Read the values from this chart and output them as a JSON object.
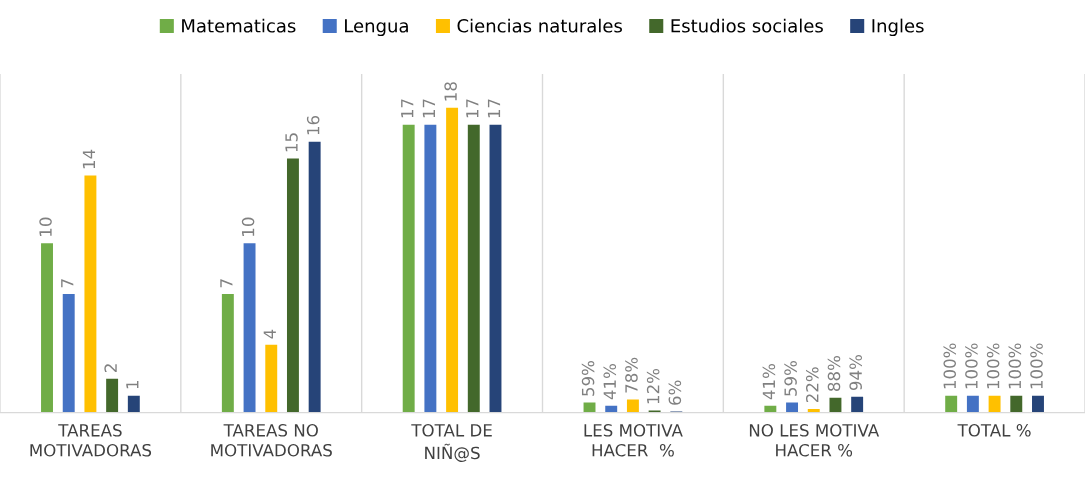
{
  "chart_data": {
    "type": "bar",
    "categories": [
      "TAREAS\nMOTIVADORAS",
      "TAREAS NO\nMOTIVADORAS",
      "TOTAL DE\nNIÑ@S",
      "LES MOTIVA\nHACER  %",
      "NO LES MOTIVA\nHACER %",
      "TOTAL %"
    ],
    "ylim": [
      0,
      20
    ],
    "grid": "x",
    "legend": "top",
    "tick_labels": "x",
    "series": [
      {
        "name": "Matematicas",
        "color": "#70ad47",
        "values": [
          10,
          7,
          17,
          0.59,
          0.41,
          1
        ],
        "value_labels": [
          "10",
          "7",
          "17",
          "59%",
          "41%",
          "100%"
        ]
      },
      {
        "name": "Lengua",
        "color": "#4472c4",
        "values": [
          7,
          10,
          17,
          0.41,
          0.59,
          1
        ],
        "value_labels": [
          "7",
          "10",
          "17",
          "41%",
          "59%",
          "100%"
        ]
      },
      {
        "name": "Ciencias naturales",
        "color": "#ffc000",
        "values": [
          14,
          4,
          18,
          0.78,
          0.22,
          1
        ],
        "value_labels": [
          "14",
          "4",
          "18",
          "78%",
          "22%",
          "100%"
        ]
      },
      {
        "name": "Estudios sociales",
        "color": "#43682b",
        "values": [
          2,
          15,
          17,
          0.12,
          0.88,
          1
        ],
        "value_labels": [
          "2",
          "15",
          "17",
          "12%",
          "88%",
          "100%"
        ]
      },
      {
        "name": "Ingles",
        "color": "#264478",
        "values": [
          1,
          16,
          17,
          0.06,
          0.94,
          1
        ],
        "value_labels": [
          "1",
          "16",
          "17",
          "6%",
          "94%",
          "100%"
        ]
      }
    ]
  }
}
